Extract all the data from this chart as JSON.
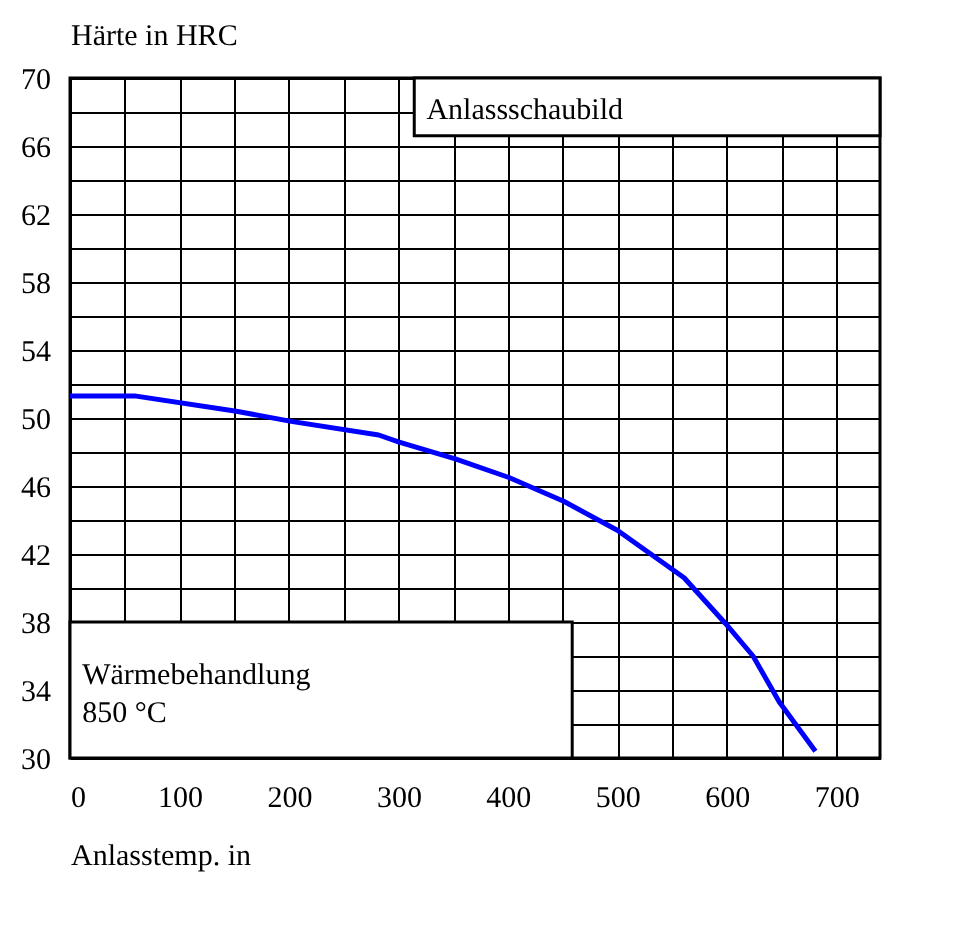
{
  "chart_data": {
    "type": "line",
    "ylabel": "Härte in HRC",
    "xlabel": "Anlasstemp. in",
    "annotations": [
      "Anlassschaubild",
      "Wärmebehandlung 850 °C"
    ],
    "series": [
      {
        "color": "#0000ff",
        "x": [
          0,
          59,
          152,
          202,
          282,
          300,
          352,
          401,
          451,
          500,
          561,
          599,
          624,
          648,
          681
        ],
        "values": [
          51.3,
          51.3,
          50.4,
          49.8,
          49.0,
          48.6,
          47.6,
          46.5,
          45.1,
          43.4,
          40.6,
          37.9,
          36.0,
          33.3,
          30.4
        ]
      }
    ],
    "xlim": [
      0,
      740
    ],
    "ylim": [
      30,
      70
    ],
    "xticks": [
      0,
      {
        "value": 50,
        "label": null
      },
      100,
      {
        "value": 150,
        "label": null
      },
      200,
      {
        "value": 250,
        "label": null
      },
      300,
      {
        "value": 350,
        "label": null
      },
      400,
      {
        "value": 450,
        "label": null
      },
      500,
      {
        "value": 550,
        "label": null
      },
      600,
      {
        "value": 650,
        "label": null
      },
      700
    ],
    "yticks": [
      30,
      {
        "value": 32,
        "label": null
      },
      34,
      {
        "value": 36,
        "label": null
      },
      38,
      {
        "value": 40,
        "label": null
      },
      42,
      {
        "value": 44,
        "label": null
      },
      46,
      {
        "value": 48,
        "label": null
      },
      50,
      {
        "value": 52,
        "label": null
      },
      54,
      {
        "value": 56,
        "label": null
      },
      58,
      {
        "value": 60,
        "label": null
      },
      62,
      {
        "value": 64,
        "label": null
      },
      66,
      {
        "value": 68,
        "label": null
      },
      70
    ],
    "grid": true,
    "marker": "none",
    "line_style": "solid"
  }
}
